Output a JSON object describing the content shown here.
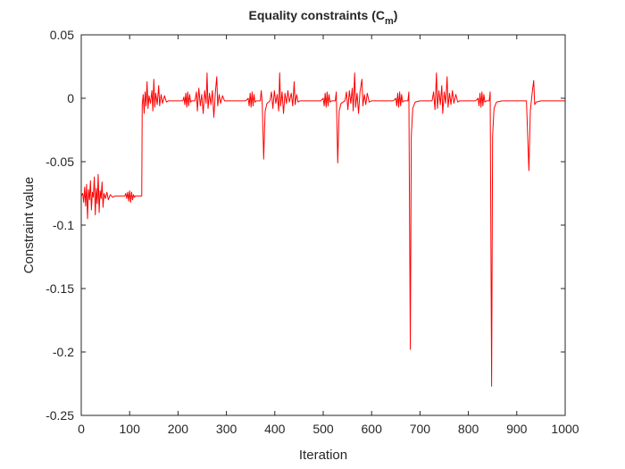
{
  "chart_data": {
    "type": "line",
    "title": {
      "text": "Equality constraints (C",
      "subscript": "m",
      "suffix": ")"
    },
    "x_label": "Iteration",
    "y_label": "Constraint value",
    "xlim": [
      0,
      1000
    ],
    "xticks": [
      0,
      100,
      200,
      300,
      400,
      500,
      600,
      700,
      800,
      900,
      1000
    ],
    "ylim": [
      -0.25,
      0.05
    ],
    "yticks": [
      -0.25,
      -0.2,
      -0.15,
      -0.1,
      -0.05,
      0,
      0.05
    ],
    "grid": false,
    "x": [
      0,
      3,
      5,
      7,
      9,
      11,
      13,
      15,
      17,
      19,
      21,
      23,
      25,
      27,
      29,
      31,
      33,
      35,
      37,
      39,
      41,
      43,
      45,
      47,
      50,
      53,
      56,
      60,
      65,
      70,
      80,
      90,
      92,
      94,
      96,
      98,
      100,
      102,
      104,
      106,
      108,
      110,
      112,
      125,
      126,
      128,
      130,
      132,
      134,
      136,
      138,
      140,
      143,
      146,
      148,
      150,
      152,
      154,
      157,
      160,
      162,
      165,
      168,
      172,
      176,
      180,
      200,
      210,
      212,
      214,
      216,
      218,
      220,
      222,
      224,
      226,
      228,
      235,
      238,
      240,
      243,
      246,
      249,
      252,
      255,
      258,
      260,
      262,
      265,
      268,
      271,
      274,
      277,
      280,
      282,
      285,
      288,
      292,
      296,
      340,
      345,
      347,
      349,
      351,
      353,
      355,
      357,
      359,
      362,
      370,
      372,
      374,
      377,
      380,
      384,
      390,
      393,
      396,
      399,
      402,
      405,
      408,
      410,
      412,
      415,
      418,
      421,
      424,
      427,
      430,
      434,
      437,
      440,
      442,
      445,
      448,
      452,
      495,
      500,
      502,
      504,
      506,
      508,
      510,
      512,
      514,
      517,
      525,
      527,
      530,
      533,
      537,
      545,
      548,
      551,
      554,
      557,
      560,
      562,
      565,
      567,
      570,
      573,
      576,
      580,
      582,
      585,
      588,
      591,
      595,
      600,
      645,
      650,
      652,
      654,
      656,
      658,
      660,
      662,
      664,
      667,
      675,
      677,
      680,
      682,
      685,
      690,
      700,
      725,
      728,
      731,
      734,
      736,
      739,
      742,
      745,
      747,
      750,
      753,
      756,
      758,
      761,
      764,
      767,
      770,
      774,
      778,
      782,
      815,
      820,
      822,
      824,
      826,
      828,
      830,
      832,
      834,
      837,
      843,
      845,
      848,
      850,
      853,
      858,
      870,
      920,
      925,
      928,
      932,
      935,
      937,
      940,
      950,
      1000
    ],
    "series": [
      {
        "color": "#ff0000",
        "values": [
          -0.077,
          -0.075,
          -0.082,
          -0.07,
          -0.085,
          -0.068,
          -0.095,
          -0.072,
          -0.08,
          -0.065,
          -0.088,
          -0.074,
          -0.078,
          -0.062,
          -0.092,
          -0.071,
          -0.083,
          -0.06,
          -0.09,
          -0.073,
          -0.079,
          -0.066,
          -0.086,
          -0.075,
          -0.079,
          -0.074,
          -0.08,
          -0.076,
          -0.078,
          -0.077,
          -0.077,
          -0.077,
          -0.075,
          -0.079,
          -0.074,
          -0.081,
          -0.073,
          -0.082,
          -0.074,
          -0.08,
          -0.076,
          -0.078,
          -0.077,
          -0.077,
          -0.005,
          0.003,
          -0.012,
          0.005,
          -0.006,
          0.013,
          -0.008,
          0.002,
          -0.004,
          0.006,
          -0.01,
          0.015,
          -0.007,
          0.004,
          -0.005,
          0.01,
          -0.006,
          0.003,
          -0.004,
          0.002,
          -0.003,
          -0.002,
          -0.002,
          -0.002,
          0.001,
          -0.005,
          0.004,
          -0.007,
          0.005,
          -0.006,
          0.003,
          -0.003,
          -0.002,
          -0.002,
          0.005,
          -0.01,
          0.008,
          -0.006,
          0.003,
          -0.012,
          0.006,
          -0.004,
          0.02,
          -0.008,
          0.004,
          -0.005,
          0.006,
          -0.015,
          0.004,
          0.017,
          -0.006,
          0.003,
          -0.004,
          0.002,
          -0.002,
          -0.002,
          0.0,
          -0.006,
          0.004,
          -0.007,
          0.005,
          -0.006,
          0.003,
          -0.003,
          -0.002,
          -0.002,
          0.006,
          -0.004,
          -0.048,
          -0.01,
          -0.004,
          -0.002,
          0.005,
          -0.008,
          0.006,
          -0.004,
          0.003,
          -0.01,
          0.02,
          -0.006,
          0.005,
          -0.012,
          0.004,
          -0.004,
          0.006,
          -0.003,
          0.004,
          -0.006,
          0.013,
          -0.005,
          0.003,
          -0.003,
          -0.002,
          -0.002,
          0.0,
          -0.006,
          0.004,
          -0.007,
          0.005,
          -0.006,
          0.003,
          -0.003,
          -0.002,
          -0.002,
          0.005,
          -0.051,
          -0.01,
          -0.004,
          -0.002,
          0.005,
          -0.009,
          0.006,
          -0.004,
          0.008,
          -0.01,
          0.02,
          -0.007,
          0.004,
          -0.012,
          0.005,
          0.015,
          -0.006,
          0.003,
          -0.005,
          0.004,
          -0.003,
          -0.002,
          -0.002,
          0.0,
          -0.006,
          0.004,
          -0.007,
          0.005,
          -0.006,
          0.003,
          -0.003,
          -0.002,
          -0.002,
          0.005,
          -0.198,
          -0.03,
          -0.008,
          -0.003,
          -0.002,
          -0.002,
          0.005,
          -0.009,
          0.02,
          -0.008,
          0.006,
          -0.005,
          0.01,
          -0.012,
          0.005,
          -0.004,
          0.017,
          -0.007,
          0.004,
          -0.005,
          0.006,
          -0.004,
          0.003,
          -0.003,
          -0.002,
          -0.002,
          0.0,
          -0.006,
          0.004,
          -0.007,
          0.005,
          -0.006,
          0.003,
          -0.003,
          -0.002,
          -0.002,
          0.005,
          -0.227,
          -0.03,
          -0.008,
          -0.003,
          -0.002,
          -0.002,
          -0.057,
          -0.01,
          0.005,
          0.014,
          -0.005,
          -0.003,
          -0.002,
          -0.002
        ]
      }
    ]
  }
}
